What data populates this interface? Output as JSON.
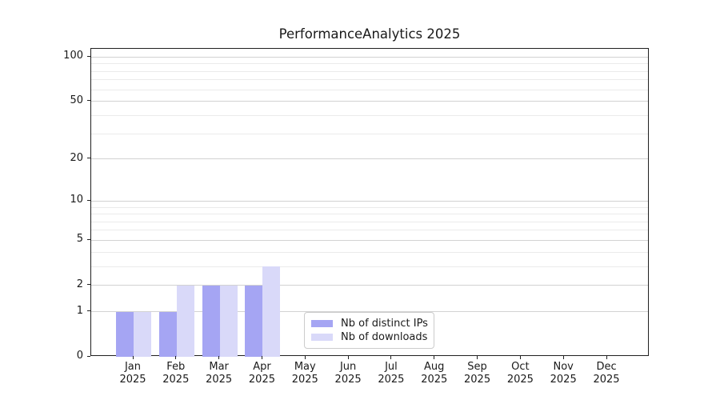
{
  "chart_data": {
    "type": "bar",
    "title": "PerformanceAnalytics 2025",
    "year_label": "2025",
    "month_labels": [
      "Jan",
      "Feb",
      "Mar",
      "Apr",
      "May",
      "Jun",
      "Jul",
      "Aug",
      "Sep",
      "Oct",
      "Nov",
      "Dec"
    ],
    "categories": [
      "Jan 2025",
      "Feb 2025",
      "Mar 2025",
      "Apr 2025",
      "May 2025",
      "Jun 2025",
      "Jul 2025",
      "Aug 2025",
      "Sep 2025",
      "Oct 2025",
      "Nov 2025",
      "Dec 2025"
    ],
    "series": [
      {
        "name": "Nb of distinct IPs",
        "color": "#a5a5f3",
        "values": [
          1,
          1,
          2,
          2,
          0,
          0,
          0,
          0,
          0,
          0,
          0,
          0
        ]
      },
      {
        "name": "Nb of downloads",
        "color": "#d9d9f9",
        "values": [
          1,
          2,
          2,
          3,
          0,
          0,
          0,
          0,
          0,
          0,
          0,
          0
        ]
      }
    ],
    "yscale": "log1p",
    "y_ticks": [
      0,
      1,
      2,
      5,
      10,
      20,
      50,
      100
    ],
    "y_tick_labels": [
      "0",
      "1",
      "2",
      "5",
      "10",
      "20",
      "50",
      "100"
    ],
    "y_minor_ticks": [
      3,
      4,
      6,
      7,
      8,
      9,
      30,
      40,
      60,
      70,
      80,
      90
    ],
    "ylim": [
      0,
      113
    ],
    "xlabel": "",
    "ylabel": "",
    "grid": true,
    "legend_position": "lower center",
    "colors": {
      "grid_major": "#d2d2d2",
      "grid_minor": "#ebebeb",
      "spine": "#1f1f1f",
      "text": "#1a1a1a",
      "background": "#ffffff"
    }
  }
}
